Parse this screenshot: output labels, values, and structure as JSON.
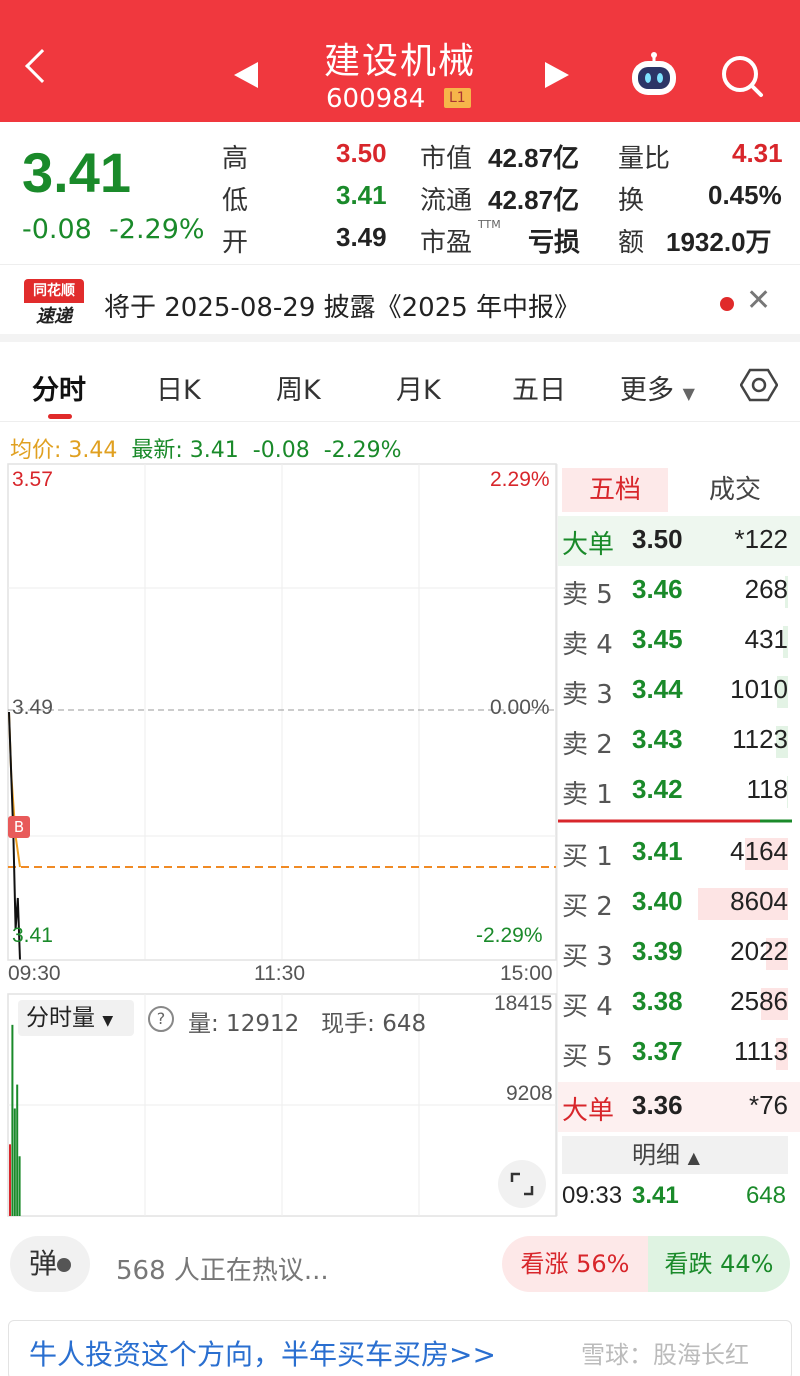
{
  "header": {
    "title": "建设机械",
    "code": "600984",
    "level_badge": "L1"
  },
  "quote": {
    "price": "3.41",
    "change": "-0.08",
    "change_pct": "-2.29%",
    "labels": {
      "high": "高",
      "low": "低",
      "open": "开",
      "mkt_cap": "市值",
      "float_cap": "流通",
      "pe": "市盈",
      "vol_ratio": "量比",
      "turnover": "换",
      "amount": "额"
    },
    "values": {
      "high": "3.50",
      "low": "3.41",
      "open": "3.49",
      "mkt_cap": "42.87亿",
      "float_cap": "42.87亿",
      "pe": "亏损",
      "vol_ratio": "4.31",
      "turnover": "0.45%",
      "amount": "1932.0万"
    },
    "pe_suffix": "TTM"
  },
  "news": {
    "logo_top": "同花顺",
    "logo_bottom": "速递",
    "text": "将于 2025-08-29 披露《2025 年中报》",
    "close": "✕"
  },
  "tabs": [
    "分时",
    "日K",
    "周K",
    "月K",
    "五日",
    "更多"
  ],
  "infoline": {
    "avg": "均价: 3.44",
    "latest": "最新: 3.41",
    "chg": "-0.08",
    "pct": "-2.29%"
  },
  "chart_data": {
    "type": "line",
    "price_axis": {
      "top": "3.57",
      "mid": "3.49",
      "bottom": "3.41"
    },
    "pct_axis": {
      "top": "2.29%",
      "mid": "0.00%",
      "bottom": "-2.29%"
    },
    "time_axis": [
      "09:30",
      "11:30",
      "15:00"
    ],
    "series": [
      {
        "values": [
          3.49,
          3.47,
          3.45,
          3.42,
          3.43,
          3.41
        ]
      },
      {
        "values": [
          3.49,
          3.47,
          3.46,
          3.45,
          3.445,
          3.44
        ]
      }
    ],
    "avg_level": 3.44,
    "marker": "B",
    "volume": {
      "label": "分时量",
      "help": "?",
      "qty": "量: 12912",
      "now": "现手: 648",
      "ymax": "18415",
      "ymid": "9208",
      "bars": [
        6000,
        16000,
        9000,
        11000,
        5000
      ]
    }
  },
  "orderbook": {
    "tabs": [
      "五档",
      "成交"
    ],
    "big_sell": {
      "label": "大单",
      "price": "3.50",
      "vol": "*122"
    },
    "asks": [
      {
        "label": "卖 5",
        "price": "3.46",
        "vol": "268",
        "ratio": 0.03
      },
      {
        "label": "卖 4",
        "price": "3.45",
        "vol": "431",
        "ratio": 0.05
      },
      {
        "label": "卖 3",
        "price": "3.44",
        "vol": "1010",
        "ratio": 0.12
      },
      {
        "label": "卖 2",
        "price": "3.43",
        "vol": "1123",
        "ratio": 0.13
      },
      {
        "label": "卖 1",
        "price": "3.42",
        "vol": "118",
        "ratio": 0.014
      }
    ],
    "bids": [
      {
        "label": "买 1",
        "price": "3.41",
        "vol": "4164",
        "ratio": 0.48
      },
      {
        "label": "买 2",
        "price": "3.40",
        "vol": "8604",
        "ratio": 1.0
      },
      {
        "label": "买 3",
        "price": "3.39",
        "vol": "2022",
        "ratio": 0.24
      },
      {
        "label": "买 4",
        "price": "3.38",
        "vol": "2586",
        "ratio": 0.3
      },
      {
        "label": "买 5",
        "price": "3.37",
        "vol": "1113",
        "ratio": 0.13
      }
    ],
    "big_buy": {
      "label": "大单",
      "price": "3.36",
      "vol": "*76"
    },
    "detail_label": "明细",
    "tick": {
      "time": "09:33",
      "price": "3.41",
      "vol": "648"
    }
  },
  "bottom": {
    "dan": "弹",
    "hot": "568 人正在热议...",
    "bull": "看涨 56%",
    "bear": "看跌 44%",
    "promo": "牛人投资这个方向，半年买车买房>>",
    "watermark": "雪球：股海长红"
  },
  "colors": {
    "header_bg": "#f0383e",
    "up": "#d8262b",
    "down": "#1a8a2a",
    "avg_line": "#f08a24"
  }
}
